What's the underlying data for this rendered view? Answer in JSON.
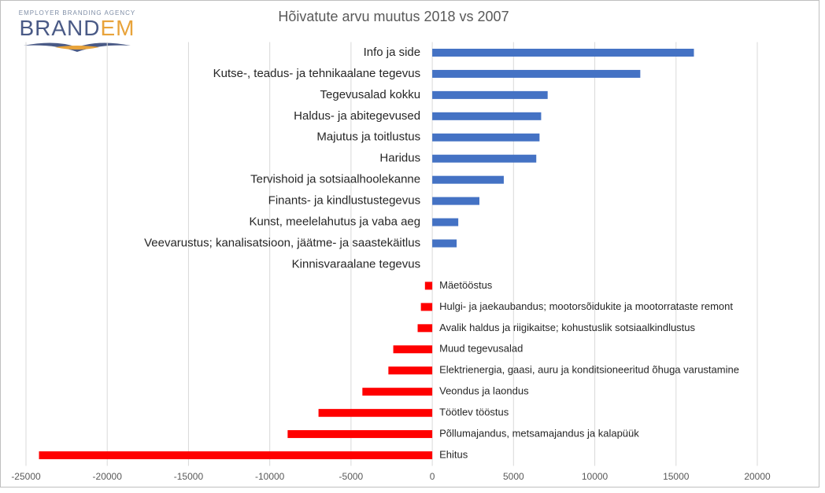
{
  "logo": {
    "tagline": "EMPLOYER BRANDING AGENCY",
    "name_parts": [
      "BRAND",
      "EM"
    ]
  },
  "chart_data": {
    "type": "bar",
    "orientation": "horizontal",
    "title": "Hõivatute arvu muutus 2018 vs 2007",
    "categories": [
      "Info ja side",
      "Kutse-, teadus- ja tehnikaalane tegevus",
      "Tegevusalad kokku",
      "Haldus- ja abitegevused",
      "Majutus ja toitlustus",
      "Haridus",
      "Tervishoid ja sotsiaalhoolekanne",
      "Finants- ja kindlustustegevus",
      "Kunst, meelelahutus ja vaba aeg",
      "Veevarustus; kanalisatsioon, jäätme- ja saastekäitlus",
      "Kinnisvaraalane tegevus",
      "Mäetööstus",
      "Hulgi- ja jaekaubandus; mootorsõidukite ja mootorrataste remont",
      "Avalik haldus ja riigikaitse; kohustuslik sotsiaalkindlustus",
      "Muud tegevusalad",
      "Elektrienergia, gaasi, auru ja konditsioneeritud õhuga varustamine",
      "Veondus ja laondus",
      "Töötlev tööstus",
      "Põllumajandus, metsamajandus ja kalapüük",
      "Ehitus"
    ],
    "values": [
      16100,
      12800,
      7100,
      6700,
      6600,
      6400,
      4400,
      2900,
      1600,
      1500,
      0,
      -450,
      -700,
      -900,
      -2400,
      -2700,
      -4300,
      -7000,
      -8900,
      -24200
    ],
    "positive_color": "#4472c4",
    "negative_color": "#ff0000",
    "xlim": [
      -25000,
      20000
    ],
    "xticks": [
      -25000,
      -20000,
      -15000,
      -10000,
      -5000,
      0,
      5000,
      10000,
      15000,
      20000
    ],
    "grid": true
  }
}
